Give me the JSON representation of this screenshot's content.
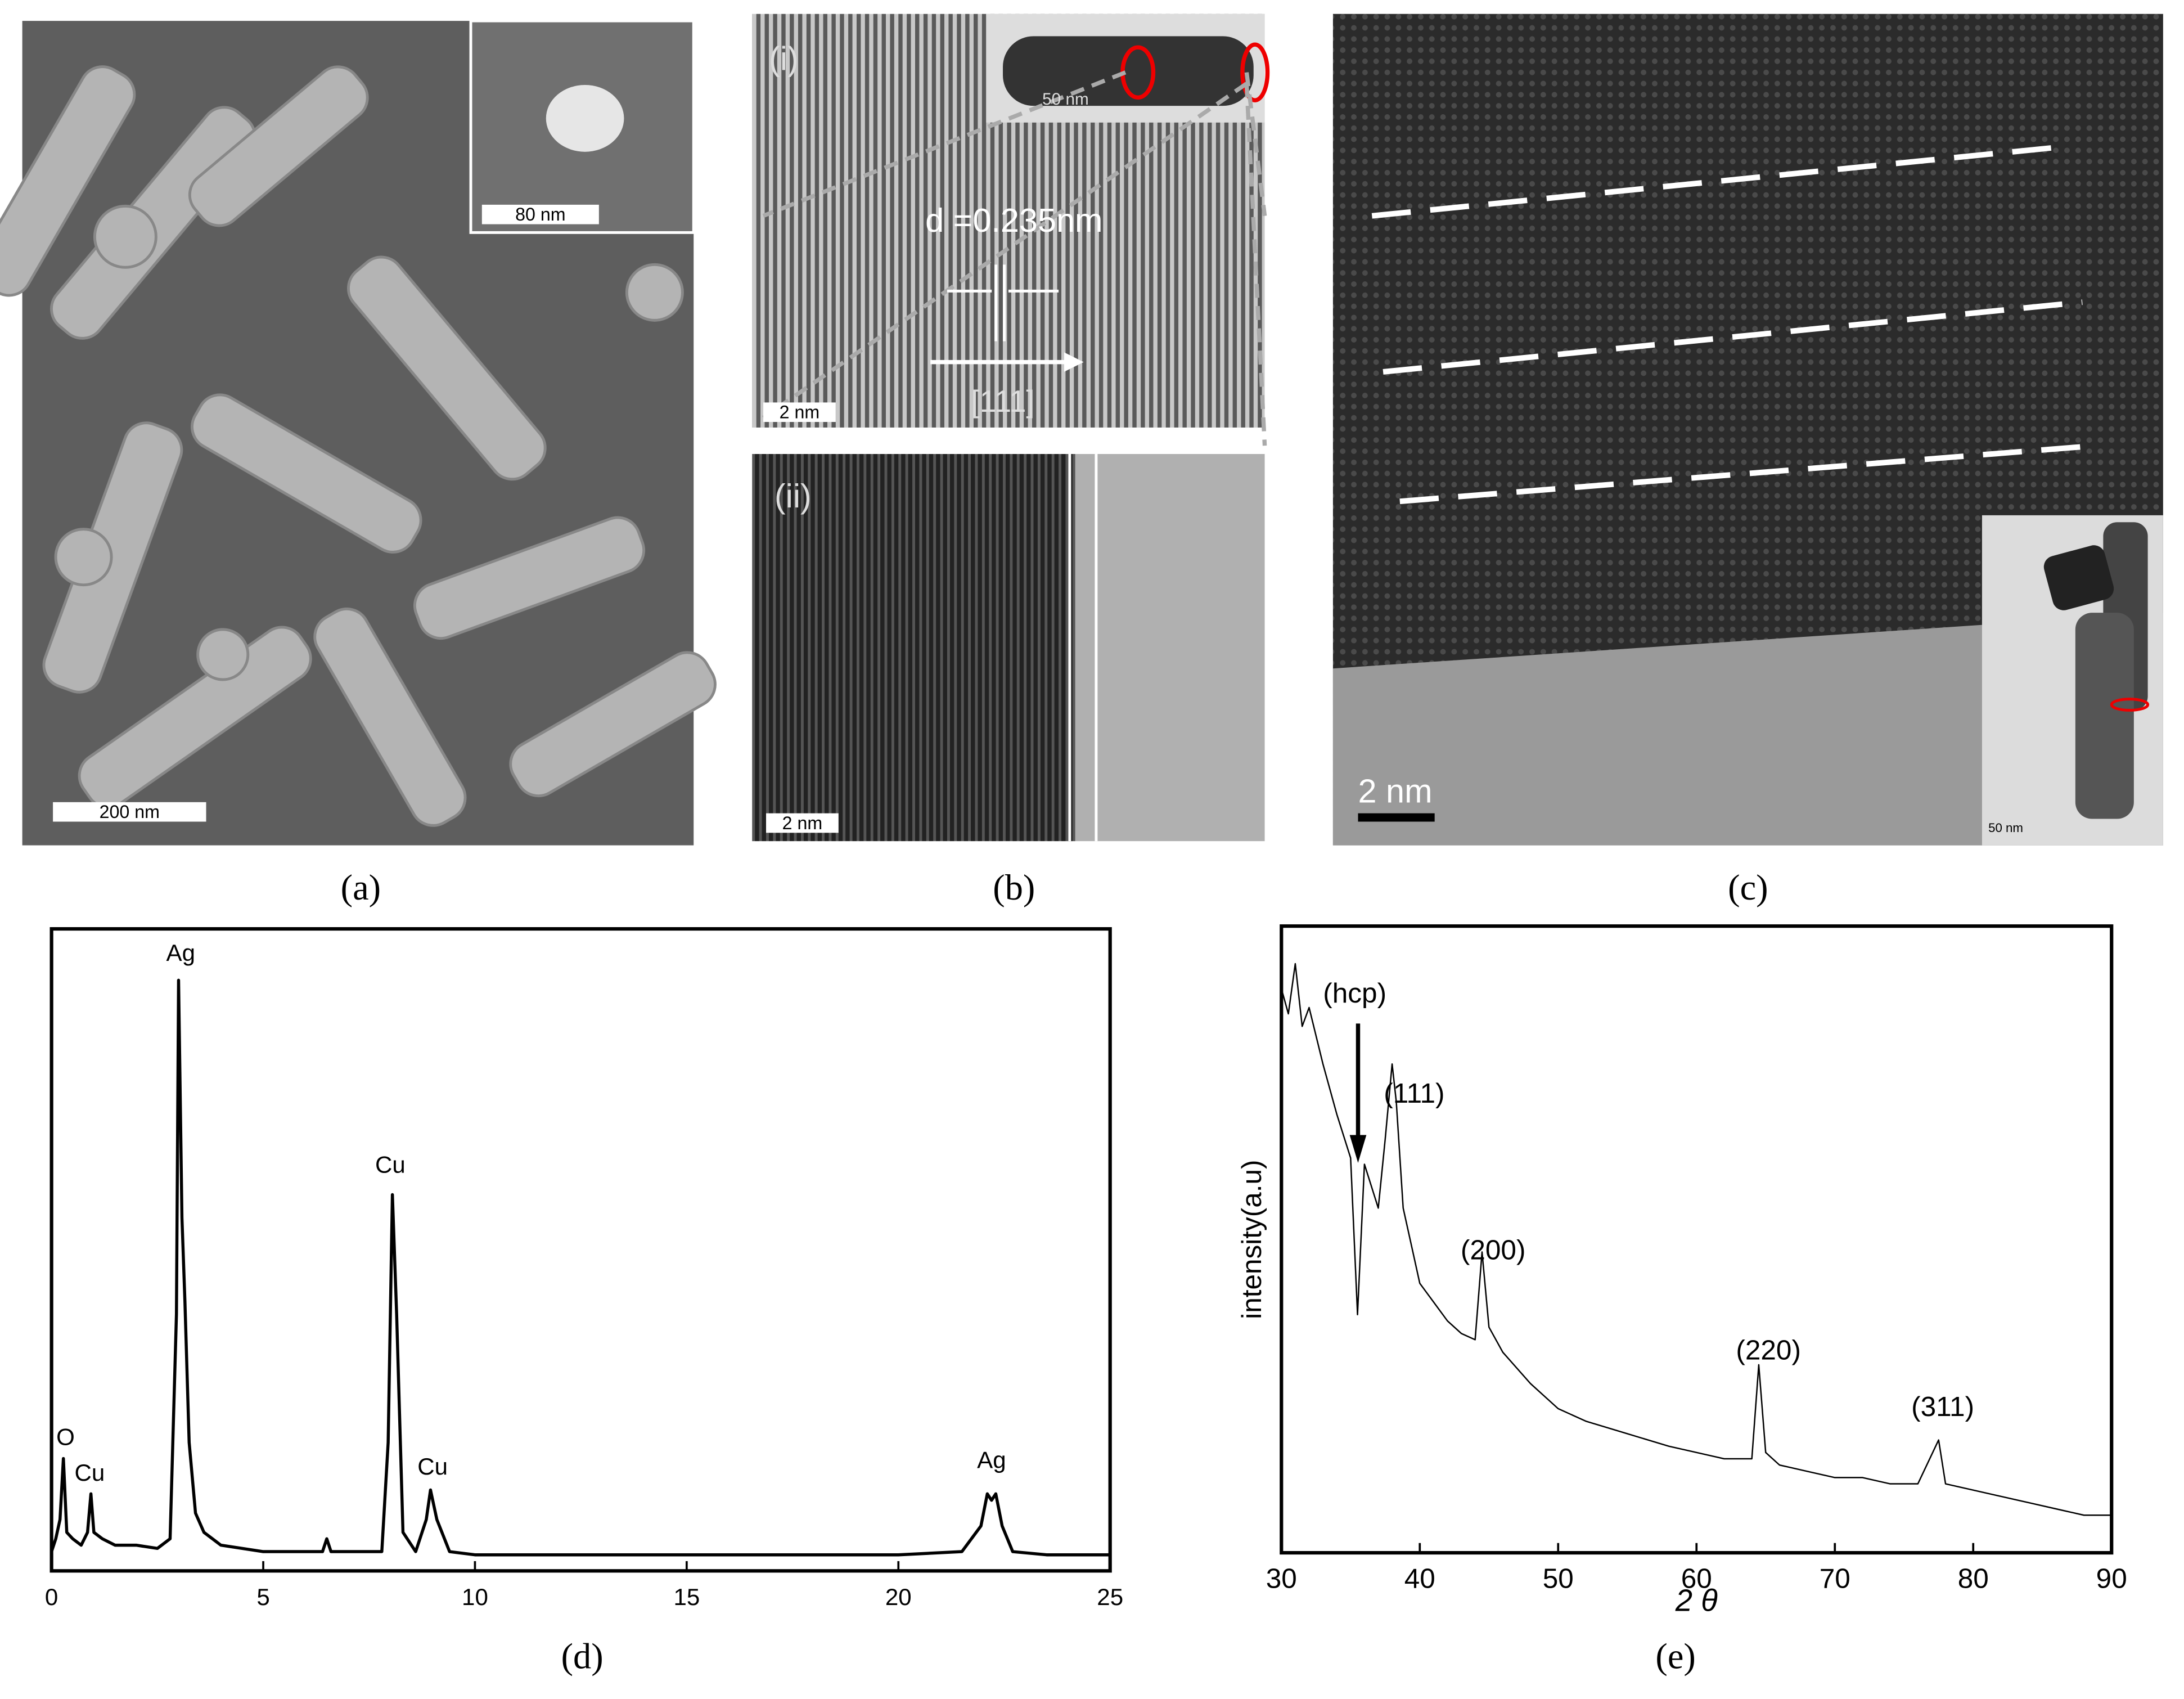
{
  "panel_labels": [
    "(a)",
    "(b)",
    "(c)",
    "(d)",
    "(e)"
  ],
  "micrographs": {
    "a": {
      "scale_bar": "200 nm",
      "inset_scale_bar": "80 nm"
    },
    "b": {
      "top_label": "(i)",
      "inset_scale_bar": "50 nm",
      "spacing": "d =0.235nm",
      "direction": "[111]",
      "top_scale_bar": "2 nm",
      "bottom_label": "(ii)",
      "bottom_scale_bar": "2 nm"
    },
    "c": {
      "scale_bar": "2 nm",
      "inset_scale_bar": "50 nm"
    }
  },
  "chart_data": [
    {
      "type": "line",
      "color": "#000000",
      "x": [
        0,
        0.1,
        0.2,
        0.28,
        0.36,
        0.5,
        0.7,
        0.85,
        0.93,
        1.0,
        1.2,
        1.5,
        2.0,
        2.5,
        2.8,
        2.95,
        3.0,
        3.08,
        3.15,
        3.25,
        3.4,
        3.6,
        4.0,
        5,
        6,
        6.4,
        6.5,
        6.6,
        7,
        7.8,
        7.95,
        8.05,
        8.15,
        8.3,
        8.6,
        8.85,
        8.95,
        9.1,
        9.4,
        10,
        12,
        15,
        18,
        20,
        21.5,
        21.95,
        22.1,
        22.2,
        22.3,
        22.45,
        22.7,
        23.5,
        25
      ],
      "values": [
        3,
        5,
        8,
        17.5,
        6,
        5,
        4,
        6,
        12,
        6,
        5,
        4,
        4,
        3.5,
        5,
        40,
        92,
        55,
        42,
        20,
        9,
        6,
        4,
        3,
        3,
        3,
        5,
        3,
        3,
        3,
        20,
        58.6,
        40,
        6,
        3,
        8,
        12.6,
        8,
        3,
        2.5,
        2.5,
        2.5,
        2.5,
        2.5,
        3,
        7,
        12,
        11,
        12,
        7,
        3,
        2.5,
        2.5
      ],
      "xlim": [
        0,
        25
      ],
      "xticks": [
        0,
        5,
        10,
        15,
        20,
        25
      ],
      "ylim": [
        0,
        100
      ],
      "annotations": [
        {
          "text": "O",
          "x": 0.33,
          "y": 20.6
        },
        {
          "text": "Cu",
          "x": 0.9,
          "y": 15
        },
        {
          "text": "Ag",
          "x": 3.05,
          "y": 96
        },
        {
          "text": "Cu",
          "x": 8.0,
          "y": 63
        },
        {
          "text": "Cu",
          "x": 9.0,
          "y": 16
        },
        {
          "text": "Ag",
          "x": 22.2,
          "y": 17
        }
      ]
    },
    {
      "type": "line",
      "color": "#000000",
      "x_label": "2 θ",
      "y_label": "intensity(a.u)",
      "x": [
        30,
        30.5,
        31,
        31.5,
        32,
        33,
        34,
        35,
        35.5,
        36,
        37,
        37.5,
        38,
        38.3,
        38.8,
        39.5,
        40,
        41,
        42,
        43,
        44,
        44.5,
        45,
        46,
        48,
        50,
        52,
        55,
        58,
        60,
        62,
        64,
        64.5,
        65,
        66,
        68,
        70,
        72,
        74,
        76,
        77.5,
        78,
        80,
        82,
        84,
        86,
        88,
        90
      ],
      "values": [
        90,
        86,
        94,
        84,
        87,
        78,
        70,
        63,
        38,
        62,
        55,
        66,
        78,
        72,
        55,
        48,
        43,
        40,
        37,
        35,
        34,
        48,
        36,
        32,
        27,
        23,
        21,
        19,
        17,
        16,
        15,
        15,
        30,
        16,
        14,
        13,
        12,
        12,
        11,
        11,
        18,
        11,
        10,
        9,
        8,
        7,
        6,
        6
      ],
      "xlim": [
        30,
        90
      ],
      "xticks": [
        30,
        40,
        50,
        60,
        70,
        80,
        90
      ],
      "ylim": [
        0,
        100
      ],
      "annotations": [
        {
          "text": "(hcp)",
          "x": 35.3,
          "y": 89
        },
        {
          "text": "(111)",
          "x": 39.6,
          "y": 73
        },
        {
          "text": "(200)",
          "x": 45.3,
          "y": 48
        },
        {
          "text": "(220)",
          "x": 65.2,
          "y": 32
        },
        {
          "text": "(311)",
          "x": 77.8,
          "y": 23
        }
      ]
    }
  ]
}
